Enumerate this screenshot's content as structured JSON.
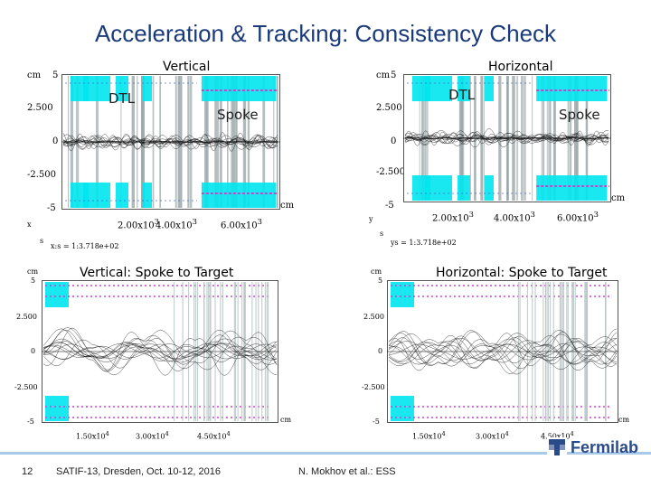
{
  "title": "Acceleration & Tracking: Consistency Check",
  "colors": {
    "title": "#1a3a7a",
    "cyan": "#00e5ee",
    "magenta": "#cc44cc",
    "gray": "#9aa6a8",
    "footer_line": "#a8c9e8"
  },
  "panels": {
    "top_left": {
      "label": "Vertical",
      "y_unit": "cm",
      "y_ticks": [
        "5",
        "2.500",
        "0",
        "-2.500",
        "-5"
      ],
      "x_ticks": [
        "2.00x10",
        "4.00x10",
        "6.00x10"
      ],
      "x_exp": "3",
      "x_unit": "cm",
      "region_left": "DTL",
      "region_right": "Spoke",
      "axis_x": "x",
      "axis_s": "s",
      "footnote": "x:s = 1:3.718e+02"
    },
    "top_right": {
      "label": "Horizontal",
      "y_unit": "cm",
      "y_ticks": [
        "5",
        "2.500",
        "0",
        "-2.500",
        "-5"
      ],
      "x_ticks": [
        "2.00x10",
        "4.00x10",
        "6.00x10"
      ],
      "x_exp": "3",
      "x_unit": "cm",
      "region_left": "DTL",
      "region_right": "Spoke",
      "axis_y": "y",
      "axis_s": "s",
      "footnote": "ys = 1:3.718e+02"
    },
    "bottom_left": {
      "label": "Vertical: Spoke to Target",
      "y_unit": "cm",
      "y_ticks": [
        "5",
        "2.500",
        "0",
        "-2.500",
        "-5"
      ],
      "x_ticks": [
        "1.50x10",
        "3.00x10",
        "4.50x10"
      ],
      "x_exp": "4",
      "x_unit": "cm"
    },
    "bottom_right": {
      "label": "Horizontal: Spoke to Target",
      "y_unit": "cm",
      "y_ticks": [
        "5",
        "2.500",
        "0",
        "-2.500",
        "-5"
      ],
      "x_ticks": [
        "1.50x10",
        "3.00x10",
        "4.50x10"
      ],
      "x_exp": "4",
      "x_unit": "cm"
    }
  },
  "footer": {
    "page": "12",
    "conference": "SATIF-13, Dresden, Oct. 10-12, 2016",
    "author": "N. Mokhov et al.: ESS",
    "logo": "Fermilab",
    "logo_icon": "fermilab-logo-icon"
  }
}
